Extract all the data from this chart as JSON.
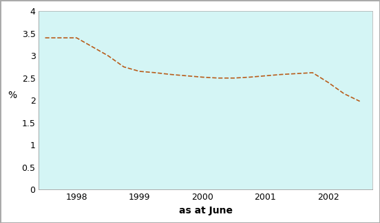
{
  "x": [
    1997.5,
    1998.0,
    1998.25,
    1998.5,
    1998.75,
    1999.0,
    1999.25,
    1999.5,
    1999.75,
    2000.0,
    2000.25,
    2000.5,
    2000.75,
    2001.0,
    2001.25,
    2001.5,
    2001.75,
    2002.0,
    2002.25,
    2002.5
  ],
  "y": [
    3.4,
    3.4,
    3.2,
    3.0,
    2.75,
    2.65,
    2.62,
    2.58,
    2.55,
    2.52,
    2.5,
    2.5,
    2.52,
    2.55,
    2.58,
    2.6,
    2.62,
    2.4,
    2.15,
    1.98
  ],
  "line_color": "#b85c1a",
  "bg_color": "#d4f5f5",
  "outer_bg": "#ffffff",
  "xlabel": "as at June",
  "ylabel": "%",
  "xlim": [
    1997.4,
    2002.7
  ],
  "ylim": [
    0,
    4
  ],
  "xticks": [
    1998,
    1999,
    2000,
    2001,
    2002
  ],
  "yticks": [
    0,
    0.5,
    1.0,
    1.5,
    2.0,
    2.5,
    3.0,
    3.5,
    4.0
  ],
  "xlabel_fontsize": 10,
  "ylabel_fontsize": 10,
  "tick_fontsize": 9,
  "line_width": 1.2,
  "linestyle": "--"
}
